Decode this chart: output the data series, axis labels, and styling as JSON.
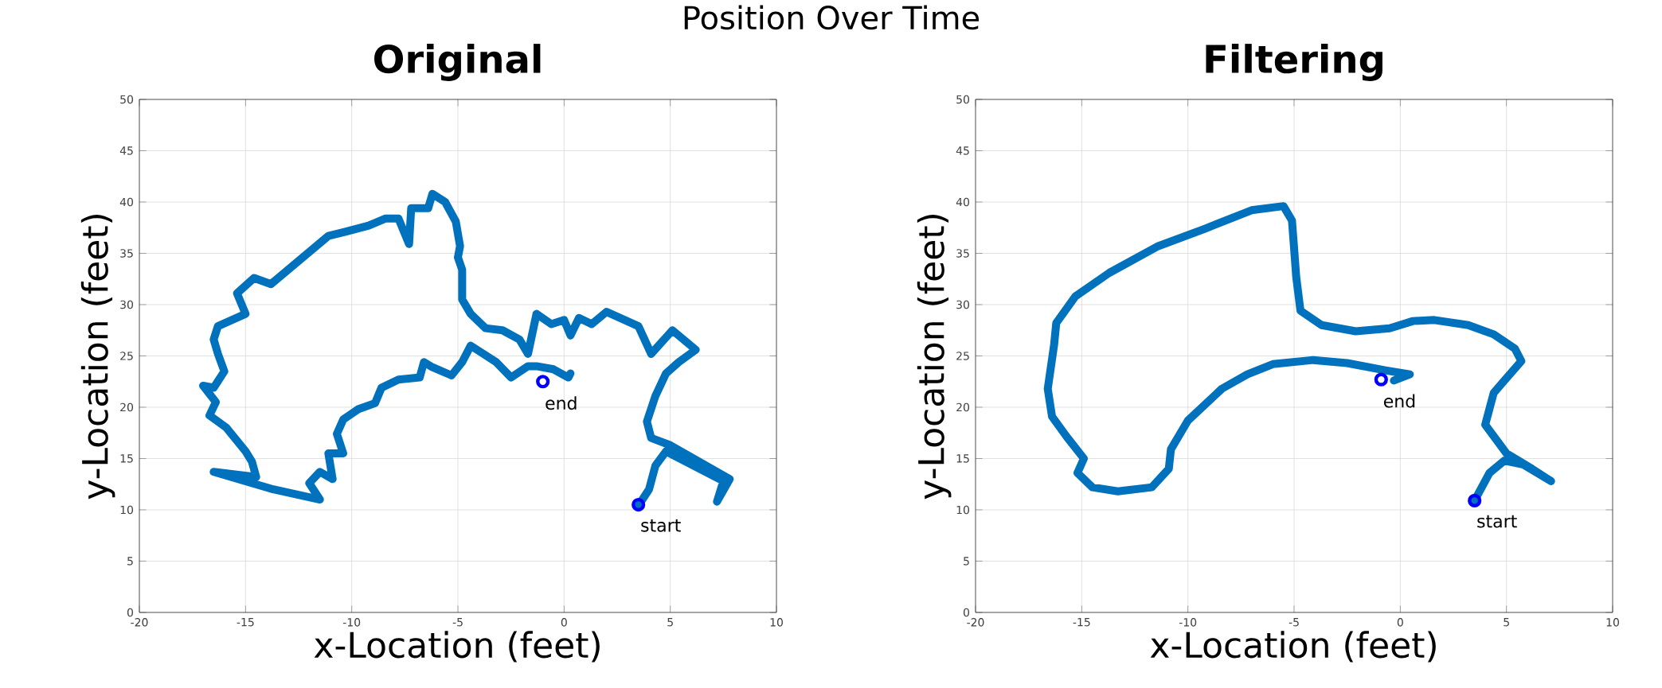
{
  "chart_data": [
    {
      "type": "line",
      "title": "Original",
      "xlabel": "x-Location (feet)",
      "ylabel": "y-Location (feet)",
      "xlim": [
        -20,
        10
      ],
      "ylim": [
        0,
        50
      ],
      "xticks": [
        -20,
        -15,
        -10,
        -5,
        0,
        5,
        10
      ],
      "yticks": [
        0,
        5,
        10,
        15,
        20,
        25,
        30,
        35,
        40,
        45,
        50
      ],
      "grid": true,
      "annotations": [
        "Position Over Time",
        {
          "text": "start",
          "x": 3.5,
          "y": 10.5
        },
        {
          "text": "end",
          "x": -1,
          "y": 22.5
        }
      ],
      "series": [
        {
          "color": "#0072bd",
          "x": [
            3.5,
            4.0,
            4.3,
            4.8,
            7.5,
            7.2,
            7.8,
            5.0,
            4.1,
            3.9,
            4.3,
            4.8,
            5.4,
            6.2,
            5.1,
            4.1,
            3.5,
            2.0,
            1.3,
            0.7,
            0.3,
            0,
            -0.6,
            -1.3,
            -1.7,
            -2.1,
            -2.9,
            -3.7,
            -4.4,
            -4.8,
            -4.8,
            -5.0,
            -4.9,
            -5.1,
            -5.6,
            -6.2,
            -6.4,
            -7.2,
            -7.3,
            -7.8,
            -8.4,
            -9.2,
            -10.3,
            -11.1,
            -13.8,
            -14.6,
            -15.4,
            -15.0,
            -16.3,
            -16.5,
            -16.3,
            -16.0,
            -16.5,
            -17.0,
            -16.4,
            -16.7,
            -15.9,
            -15.0,
            -14.7,
            -14.5,
            -16.5,
            -13.7,
            -11.5,
            -12.0,
            -11.5,
            -10.9,
            -11.1,
            -10.4,
            -10.7,
            -10.4,
            -9.7,
            -8.9,
            -8.6,
            -7.8,
            -6.8,
            -6.6,
            -6.2,
            -5.3,
            -4.8,
            -4.4,
            -3.8,
            -3.2,
            -2.5,
            -1.7,
            -1.3,
            -0.5,
            0.2,
            0.3
          ],
          "values": [
            10.4,
            12.0,
            14.3,
            15.7,
            12.8,
            10.8,
            13.0,
            16.3,
            17.0,
            18.6,
            21.1,
            23.3,
            24.4,
            25.6,
            27.5,
            25.2,
            27.9,
            29.3,
            28.1,
            28.7,
            27.0,
            28.5,
            28.1,
            29.1,
            25.2,
            26.6,
            27.5,
            27.7,
            29.1,
            30.5,
            33.4,
            34.6,
            35.7,
            38.1,
            40.0,
            40.8,
            39.4,
            39.4,
            35.9,
            38.4,
            38.4,
            37.7,
            37.1,
            36.7,
            32.0,
            32.6,
            31.1,
            29.1,
            27.9,
            26.6,
            25.2,
            23.5,
            21.9,
            22.1,
            20.5,
            19.2,
            18.0,
            15.7,
            14.7,
            13.2,
            13.7,
            12.0,
            11.0,
            12.6,
            13.7,
            13.0,
            15.5,
            15.5,
            17.4,
            18.8,
            19.8,
            20.4,
            21.9,
            22.7,
            22.9,
            24.4,
            23.9,
            23.1,
            24.4,
            26.0,
            25.2,
            24.4,
            22.9,
            24.0,
            24.0,
            23.7,
            22.9,
            23.3
          ]
        },
        {
          "type": "scatter",
          "color": "#0000ff",
          "marker": "circle",
          "x": [
            3.5,
            -1
          ],
          "values": [
            10.5,
            22.5
          ]
        }
      ]
    },
    {
      "type": "line",
      "title": "Filtering",
      "xlabel": "x-Location (feet)",
      "ylabel": "y-Location (feet)",
      "xlim": [
        -20,
        10
      ],
      "ylim": [
        0,
        50
      ],
      "xticks": [
        -20,
        -15,
        -10,
        -5,
        0,
        5,
        10
      ],
      "yticks": [
        0,
        5,
        10,
        15,
        20,
        25,
        30,
        35,
        40,
        45,
        50
      ],
      "grid": true,
      "annotations": [
        {
          "text": "start",
          "x": 3.5,
          "y": 10.9
        },
        {
          "text": "end",
          "x": -0.9,
          "y": 22.7
        }
      ],
      "series": [
        {
          "color": "#0072bd",
          "x": [
            3.5,
            4.2,
            4.9,
            5.8,
            7.1,
            6.2,
            5.0,
            4.0,
            4.4,
            4.9,
            5.7,
            5.4,
            4.4,
            3.2,
            1.6,
            0.6,
            -0.5,
            -2.1,
            -3.7,
            -4.7,
            -4.9,
            -5.0,
            -5.1,
            -5.5,
            -7.0,
            -9.2,
            -11.4,
            -13.7,
            -15.3,
            -16.2,
            -16.3,
            -16.6,
            -16.4,
            -15.7,
            -14.9,
            -15.2,
            -14.5,
            -13.3,
            -11.7,
            -10.9,
            -10.8,
            -10.0,
            -8.4,
            -7.2,
            -6.0,
            -4.1,
            -2.5,
            -0.7,
            0.45,
            -0.3
          ],
          "values": [
            10.9,
            13.6,
            14.8,
            14.4,
            12.8,
            14.0,
            15.5,
            18.3,
            21.4,
            22.6,
            24.5,
            25.7,
            27.1,
            28.0,
            28.5,
            28.4,
            27.7,
            27.4,
            28.0,
            29.4,
            32.7,
            35.5,
            38.2,
            39.6,
            39.2,
            37.4,
            35.7,
            33.1,
            30.8,
            28.2,
            26.1,
            21.8,
            19.1,
            17.1,
            15.0,
            13.6,
            12.2,
            11.8,
            12.2,
            14.0,
            15.9,
            18.7,
            21.8,
            23.2,
            24.2,
            24.6,
            24.3,
            23.6,
            23.2,
            22.6
          ]
        },
        {
          "type": "scatter",
          "color": "#0000ff",
          "marker": "circle",
          "x": [
            3.5,
            -0.9
          ],
          "values": [
            10.9,
            22.7
          ]
        }
      ]
    }
  ]
}
